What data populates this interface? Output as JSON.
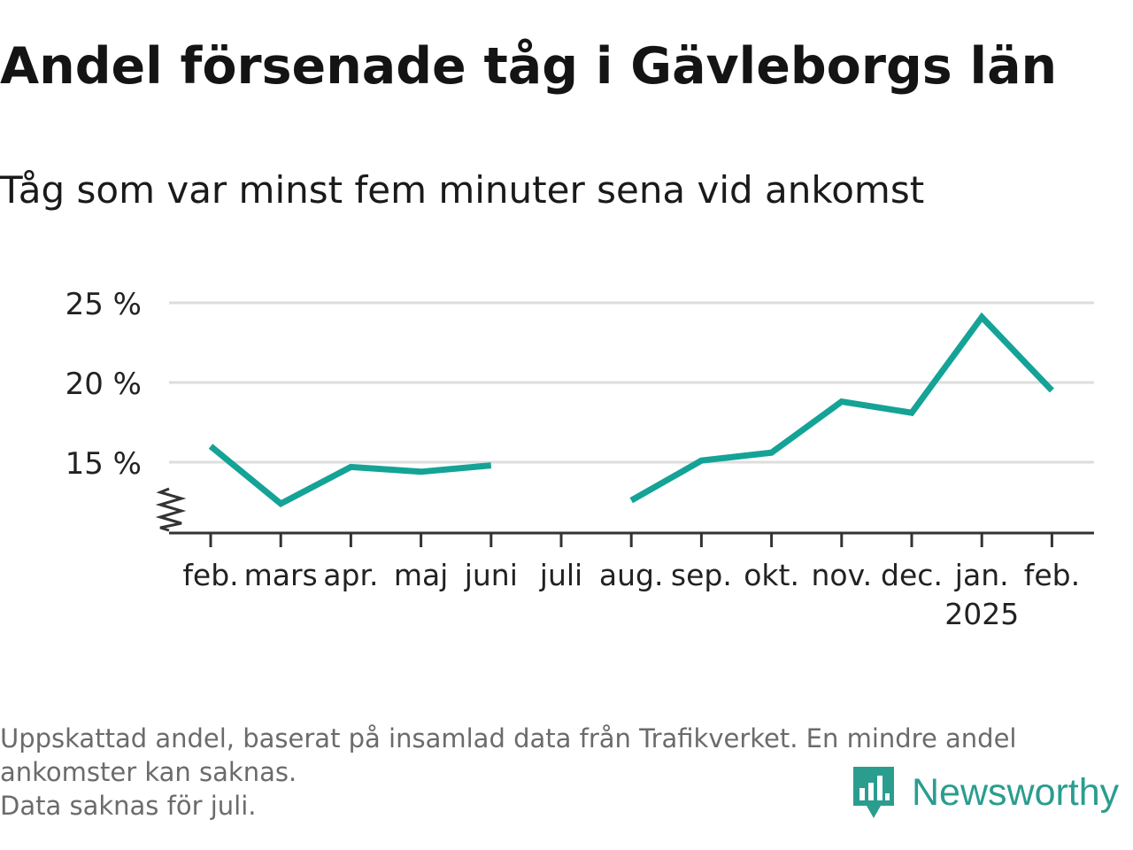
{
  "title": "Andel försenade tåg i Gävleborgs län",
  "subtitle": "Tåg som var minst fem minuter sena vid ankomst",
  "footnote": {
    "line1": "Uppskattad andel, baserat på insamlad data från Trafikverket. En mindre andel",
    "line2": "ankomster kan saknas.",
    "line3": "Data saknas för juli."
  },
  "brand": "Newsworthy",
  "colors": {
    "line": "#14a396",
    "grid": "#dddddd",
    "axis": "#333333",
    "brand": "#2a9d8f"
  },
  "chart_data": {
    "type": "line",
    "categories": [
      "feb.",
      "mars",
      "apr.",
      "maj",
      "juni",
      "juli",
      "aug.",
      "sep.",
      "okt.",
      "nov.",
      "dec.",
      "jan.",
      "feb."
    ],
    "year_label": "2025",
    "year_label_index": 11,
    "series": [
      {
        "values": [
          16.0,
          12.4,
          14.7,
          14.4,
          14.8,
          null,
          12.6,
          15.1,
          15.6,
          18.8,
          18.1,
          24.1,
          19.5
        ]
      }
    ],
    "yticks": [
      {
        "value": 15,
        "label": "15 %"
      },
      {
        "value": 20,
        "label": "20 %"
      },
      {
        "value": 25,
        "label": "25 %"
      }
    ],
    "ylim": [
      10.5,
      25
    ],
    "axis_break": true,
    "grid": true,
    "legend": "none"
  }
}
